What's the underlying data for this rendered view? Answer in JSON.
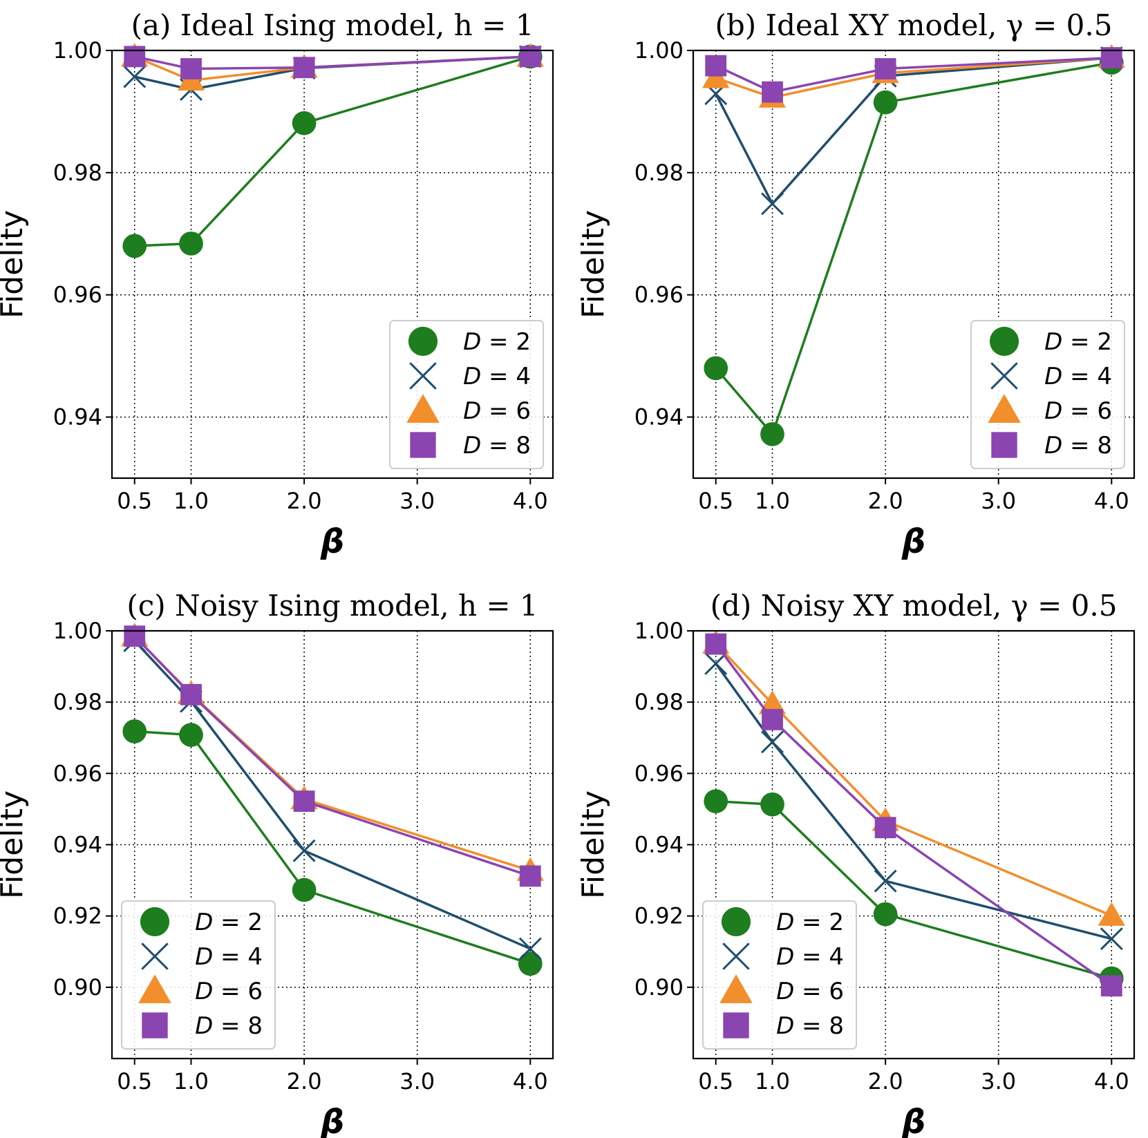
{
  "colors": {
    "D2": "#1e7d1e",
    "D4": "#1f4e6e",
    "D6": "#f28e2b",
    "D8": "#8b45b0"
  },
  "legend_labels": [
    "D = 2",
    "D = 4",
    "D = 6",
    "D = 8"
  ],
  "chart_data": [
    {
      "type": "line",
      "title": "(a) Ideal Ising model, h = 1",
      "xlabel": "β",
      "ylabel": "Fidelity",
      "x": [
        0.5,
        1.0,
        2.0,
        4.0
      ],
      "xticks": [
        "0.5",
        "1.0",
        "2.0",
        "3.0",
        "4.0"
      ],
      "xlim": [
        0.3,
        4.2
      ],
      "ylim": [
        0.93,
        1.0
      ],
      "yticks": [
        "0.94",
        "0.96",
        "0.98",
        "1.00"
      ],
      "legend_position": "bottom-right",
      "grid": true,
      "series": [
        {
          "name": "D = 2",
          "values": [
            0.968,
            0.9684,
            0.9881,
            0.999
          ]
        },
        {
          "name": "D = 4",
          "values": [
            0.9957,
            0.9936,
            0.9971,
            0.999
          ]
        },
        {
          "name": "D = 6",
          "values": [
            0.999,
            0.9951,
            0.9972,
            0.999
          ]
        },
        {
          "name": "D = 8",
          "values": [
            0.999,
            0.997,
            0.9972,
            0.999
          ]
        }
      ]
    },
    {
      "type": "line",
      "title": "(b) Ideal XY model, γ = 0.5",
      "xlabel": "β",
      "ylabel": "Fidelity",
      "x": [
        0.5,
        1.0,
        2.0,
        4.0
      ],
      "xticks": [
        "0.5",
        "1.0",
        "2.0",
        "3.0",
        "4.0"
      ],
      "xlim": [
        0.3,
        4.2
      ],
      "ylim": [
        0.93,
        1.0
      ],
      "yticks": [
        "0.94",
        "0.96",
        "0.98",
        "1.00"
      ],
      "legend_position": "bottom-right",
      "grid": true,
      "series": [
        {
          "name": "D = 2",
          "values": [
            0.948,
            0.9372,
            0.9915,
            0.998
          ]
        },
        {
          "name": "D = 4",
          "values": [
            0.9929,
            0.9749,
            0.9958,
            0.9988
          ]
        },
        {
          "name": "D = 6",
          "values": [
            0.9955,
            0.9923,
            0.9963,
            0.9988
          ]
        },
        {
          "name": "D = 8",
          "values": [
            0.9975,
            0.9932,
            0.997,
            0.9988
          ]
        }
      ]
    },
    {
      "type": "line",
      "title": "(c) Noisy Ising model, h = 1",
      "xlabel": "β",
      "ylabel": "Fidelity",
      "x": [
        0.5,
        1.0,
        2.0,
        4.0
      ],
      "xticks": [
        "0.5",
        "1.0",
        "2.0",
        "3.0",
        "4.0"
      ],
      "xlim": [
        0.3,
        4.2
      ],
      "ylim": [
        0.88,
        1.0
      ],
      "yticks": [
        "0.90",
        "0.92",
        "0.94",
        "0.96",
        "0.98",
        "1.00"
      ],
      "legend_position": "bottom-left",
      "grid": true,
      "series": [
        {
          "name": "D = 2",
          "values": [
            0.9718,
            0.9708,
            0.9273,
            0.9066
          ]
        },
        {
          "name": "D = 4",
          "values": [
            0.9972,
            0.9802,
            0.9383,
            0.9108
          ]
        },
        {
          "name": "D = 6",
          "values": [
            0.9985,
            0.9823,
            0.9528,
            0.9327
          ]
        },
        {
          "name": "D = 8",
          "values": [
            0.9985,
            0.9821,
            0.9522,
            0.9312
          ]
        }
      ]
    },
    {
      "type": "line",
      "title": "(d) Noisy XY model, γ = 0.5",
      "xlabel": "β",
      "ylabel": "Fidelity",
      "x": [
        0.5,
        1.0,
        2.0,
        4.0
      ],
      "xticks": [
        "0.5",
        "1.0",
        "2.0",
        "3.0",
        "4.0"
      ],
      "xlim": [
        0.3,
        4.2
      ],
      "ylim": [
        0.88,
        1.0
      ],
      "yticks": [
        "0.90",
        "0.92",
        "0.94",
        "0.96",
        "0.98",
        "1.00"
      ],
      "legend_position": "bottom-left",
      "grid": true,
      "series": [
        {
          "name": "D = 2",
          "values": [
            0.9522,
            0.9513,
            0.9205,
            0.9025
          ]
        },
        {
          "name": "D = 4",
          "values": [
            0.9908,
            0.9688,
            0.9298,
            0.9136
          ]
        },
        {
          "name": "D = 6",
          "values": [
            0.9965,
            0.9795,
            0.9467,
            0.9201
          ]
        },
        {
          "name": "D = 8",
          "values": [
            0.9963,
            0.9751,
            0.9448,
            0.9004
          ]
        }
      ]
    }
  ]
}
